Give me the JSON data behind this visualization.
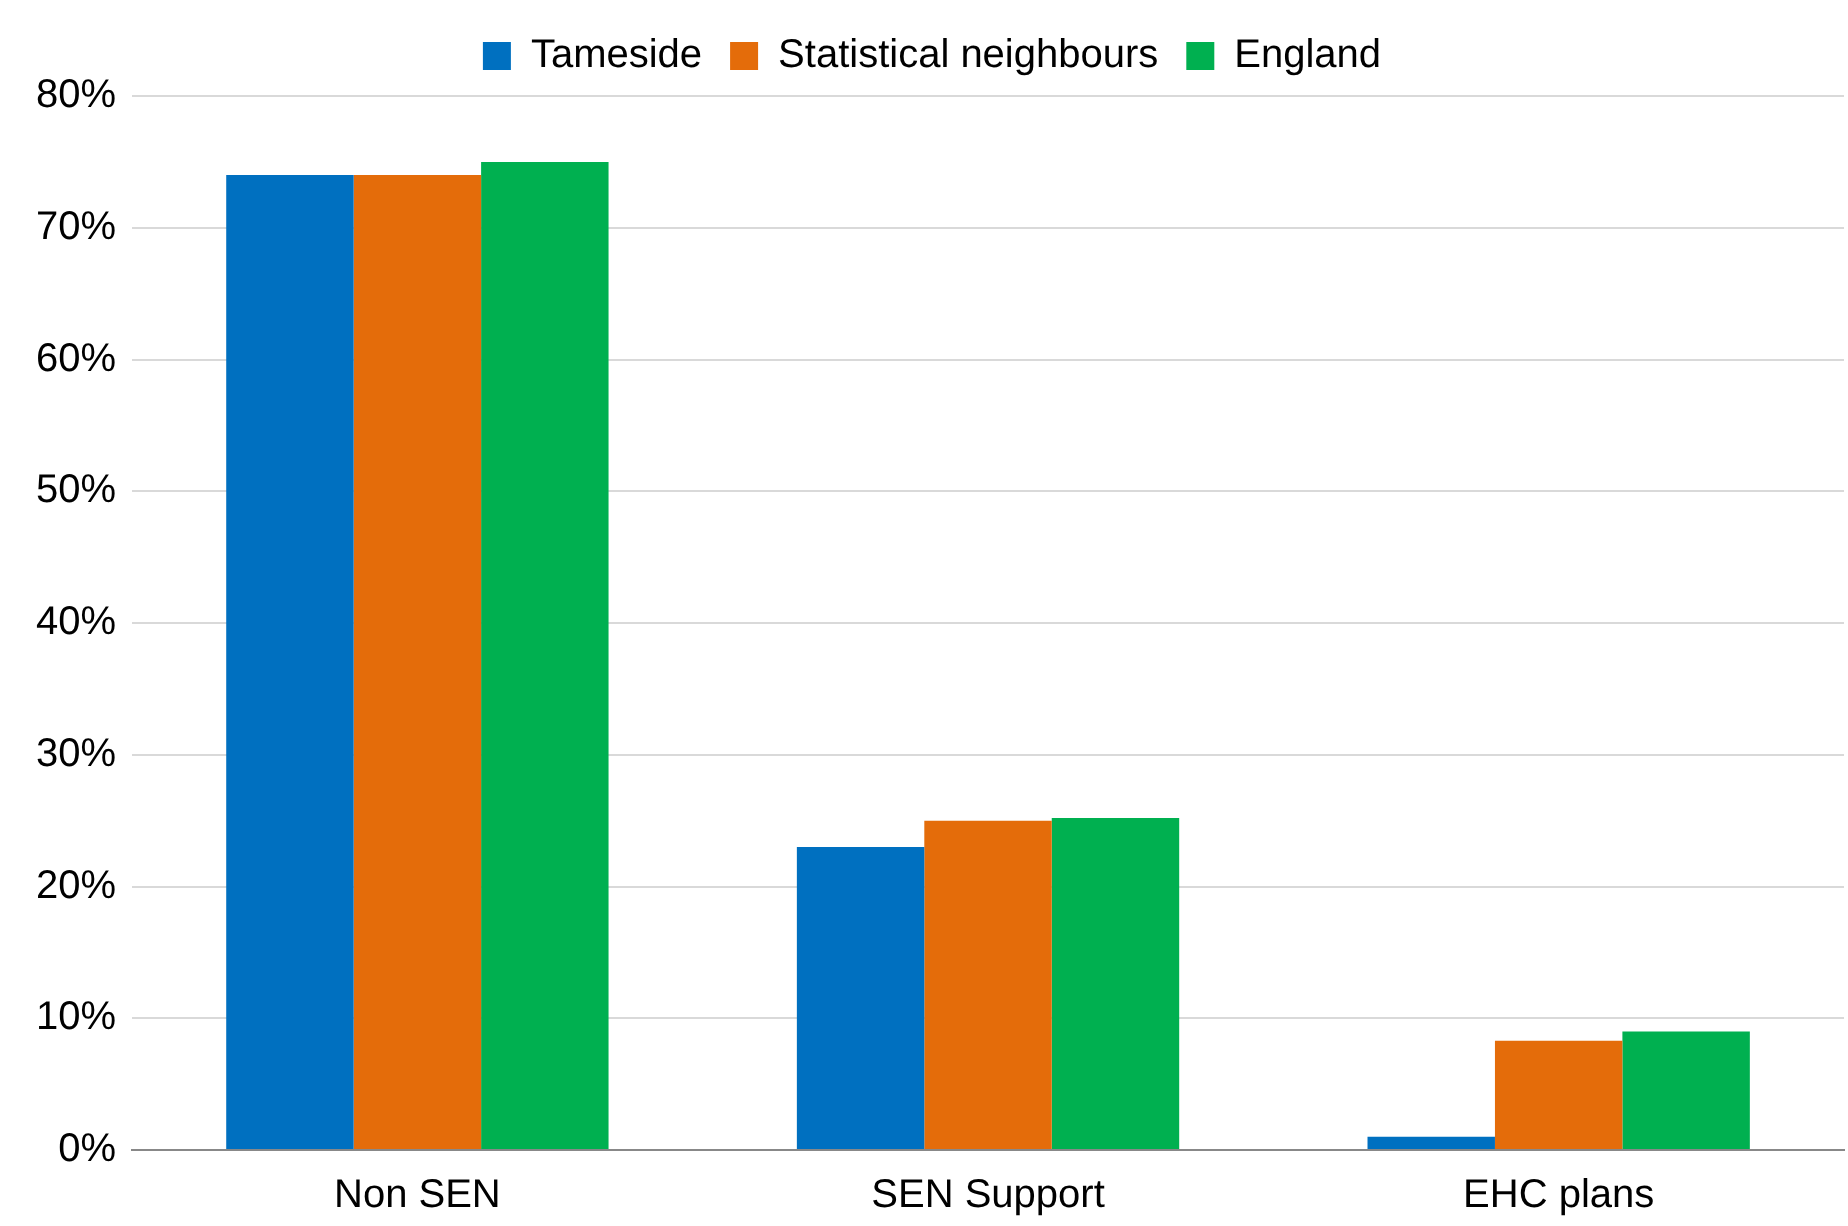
{
  "chart_data": {
    "type": "bar",
    "categories": [
      "Non SEN",
      "SEN Support",
      "EHC plans"
    ],
    "series": [
      {
        "name": "Tameside",
        "color": "#0070c0",
        "values": [
          74,
          23,
          1
        ]
      },
      {
        "name": "Statistical neighbours",
        "color": "#e46c0a",
        "values": [
          74,
          25,
          8.3
        ]
      },
      {
        "name": "England",
        "color": "#00b050",
        "values": [
          75,
          25.2,
          9
        ]
      }
    ],
    "ylim": [
      0,
      80
    ],
    "yticks": [
      {
        "value": 0,
        "label": "0%"
      },
      {
        "value": 10,
        "label": "10%"
      },
      {
        "value": 20,
        "label": "20%"
      },
      {
        "value": 30,
        "label": "30%"
      },
      {
        "value": 40,
        "label": "40%"
      },
      {
        "value": 50,
        "label": "50%"
      },
      {
        "value": 60,
        "label": "60%"
      },
      {
        "value": 70,
        "label": "70%"
      },
      {
        "value": 80,
        "label": "80%"
      }
    ],
    "grid": "y",
    "legend": "top"
  }
}
